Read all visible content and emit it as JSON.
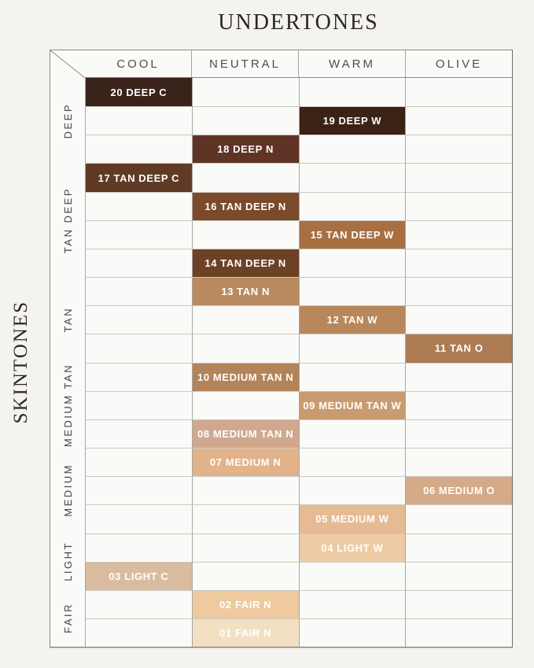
{
  "chart_data": {
    "type": "heatmap",
    "title": "UNDERTONES",
    "side_label": "SKINTONES",
    "x_categories": [
      "COOL",
      "NEUTRAL",
      "WARM",
      "OLIVE"
    ],
    "row_groups": [
      {
        "label": "DEEP",
        "row_count": 3
      },
      {
        "label": "TAN DEEP",
        "row_count": 4
      },
      {
        "label": "TAN",
        "row_count": 3
      },
      {
        "label": "MEDIUM TAN",
        "row_count": 3
      },
      {
        "label": "MEDIUM",
        "row_count": 3
      },
      {
        "label": "LIGHT",
        "row_count": 2
      },
      {
        "label": "FAIR",
        "row_count": 2
      }
    ],
    "rows": [
      {
        "shade": "20 DEEP C",
        "skintone": "DEEP",
        "undertone": "COOL",
        "column_index": 0,
        "color": "#39231a"
      },
      {
        "shade": "19 DEEP W",
        "skintone": "DEEP",
        "undertone": "WARM",
        "column_index": 2,
        "color": "#3b2214"
      },
      {
        "shade": "18 DEEP N",
        "skintone": "DEEP",
        "undertone": "NEUTRAL",
        "column_index": 1,
        "color": "#603425"
      },
      {
        "shade": "17 TAN DEEP C",
        "skintone": "TAN DEEP",
        "undertone": "COOL",
        "column_index": 0,
        "color": "#5f3b26"
      },
      {
        "shade": "16 TAN DEEP N",
        "skintone": "TAN DEEP",
        "undertone": "NEUTRAL",
        "column_index": 1,
        "color": "#7a4a2b"
      },
      {
        "shade": "15 TAN DEEP W",
        "skintone": "TAN DEEP",
        "undertone": "WARM",
        "column_index": 2,
        "color": "#a86f42"
      },
      {
        "shade": "14 TAN DEEP N",
        "skintone": "TAN DEEP",
        "undertone": "NEUTRAL",
        "column_index": 1,
        "color": "#6d4125"
      },
      {
        "shade": "13 TAN N",
        "skintone": "TAN",
        "undertone": "NEUTRAL",
        "column_index": 1,
        "color": "#b98a60"
      },
      {
        "shade": "12 TAN W",
        "skintone": "TAN",
        "undertone": "WARM",
        "column_index": 2,
        "color": "#b8875c"
      },
      {
        "shade": "11 TAN O",
        "skintone": "TAN",
        "undertone": "OLIVE",
        "column_index": 3,
        "color": "#ad7c52"
      },
      {
        "shade": "10 MEDIUM TAN N",
        "skintone": "MEDIUM TAN",
        "undertone": "NEUTRAL",
        "column_index": 1,
        "color": "#b3835a"
      },
      {
        "shade": "09 MEDIUM TAN W",
        "skintone": "MEDIUM TAN",
        "undertone": "WARM",
        "column_index": 2,
        "color": "#c99b71"
      },
      {
        "shade": "08 MEDIUM TAN N",
        "skintone": "MEDIUM TAN",
        "undertone": "NEUTRAL",
        "column_index": 1,
        "color": "#d0a88d"
      },
      {
        "shade": "07 MEDIUM N",
        "skintone": "MEDIUM",
        "undertone": "NEUTRAL",
        "column_index": 1,
        "color": "#e2b28a"
      },
      {
        "shade": "06 MEDIUM O",
        "skintone": "MEDIUM",
        "undertone": "OLIVE",
        "column_index": 3,
        "color": "#d4aa88"
      },
      {
        "shade": "05 MEDIUM W",
        "skintone": "MEDIUM",
        "undertone": "WARM",
        "column_index": 2,
        "color": "#e6bb93"
      },
      {
        "shade": "04 LIGHT W",
        "skintone": "LIGHT",
        "undertone": "WARM",
        "column_index": 2,
        "color": "#edcba4"
      },
      {
        "shade": "03 LIGHT C",
        "skintone": "LIGHT",
        "undertone": "COOL",
        "column_index": 0,
        "color": "#d9bc9f"
      },
      {
        "shade": "02 FAIR N",
        "skintone": "FAIR",
        "undertone": "NEUTRAL",
        "column_index": 1,
        "color": "#eeca9e"
      },
      {
        "shade": "01 FAIR N",
        "skintone": "FAIR",
        "undertone": "NEUTRAL",
        "column_index": 1,
        "color": "#f3e0c3"
      }
    ],
    "grid": true,
    "legend_position": "none"
  },
  "colors": {
    "page_background": "#f4f3f0",
    "cell_background": "#fafaf8",
    "outer_border": "#8a8881",
    "column_line": "#a8a6a2",
    "row_line": "#cbc8c4",
    "title_text": "#2b2824",
    "header_text": "#504e4a",
    "group_label_text": "#44423f",
    "swatch_text": "#ffffff"
  }
}
